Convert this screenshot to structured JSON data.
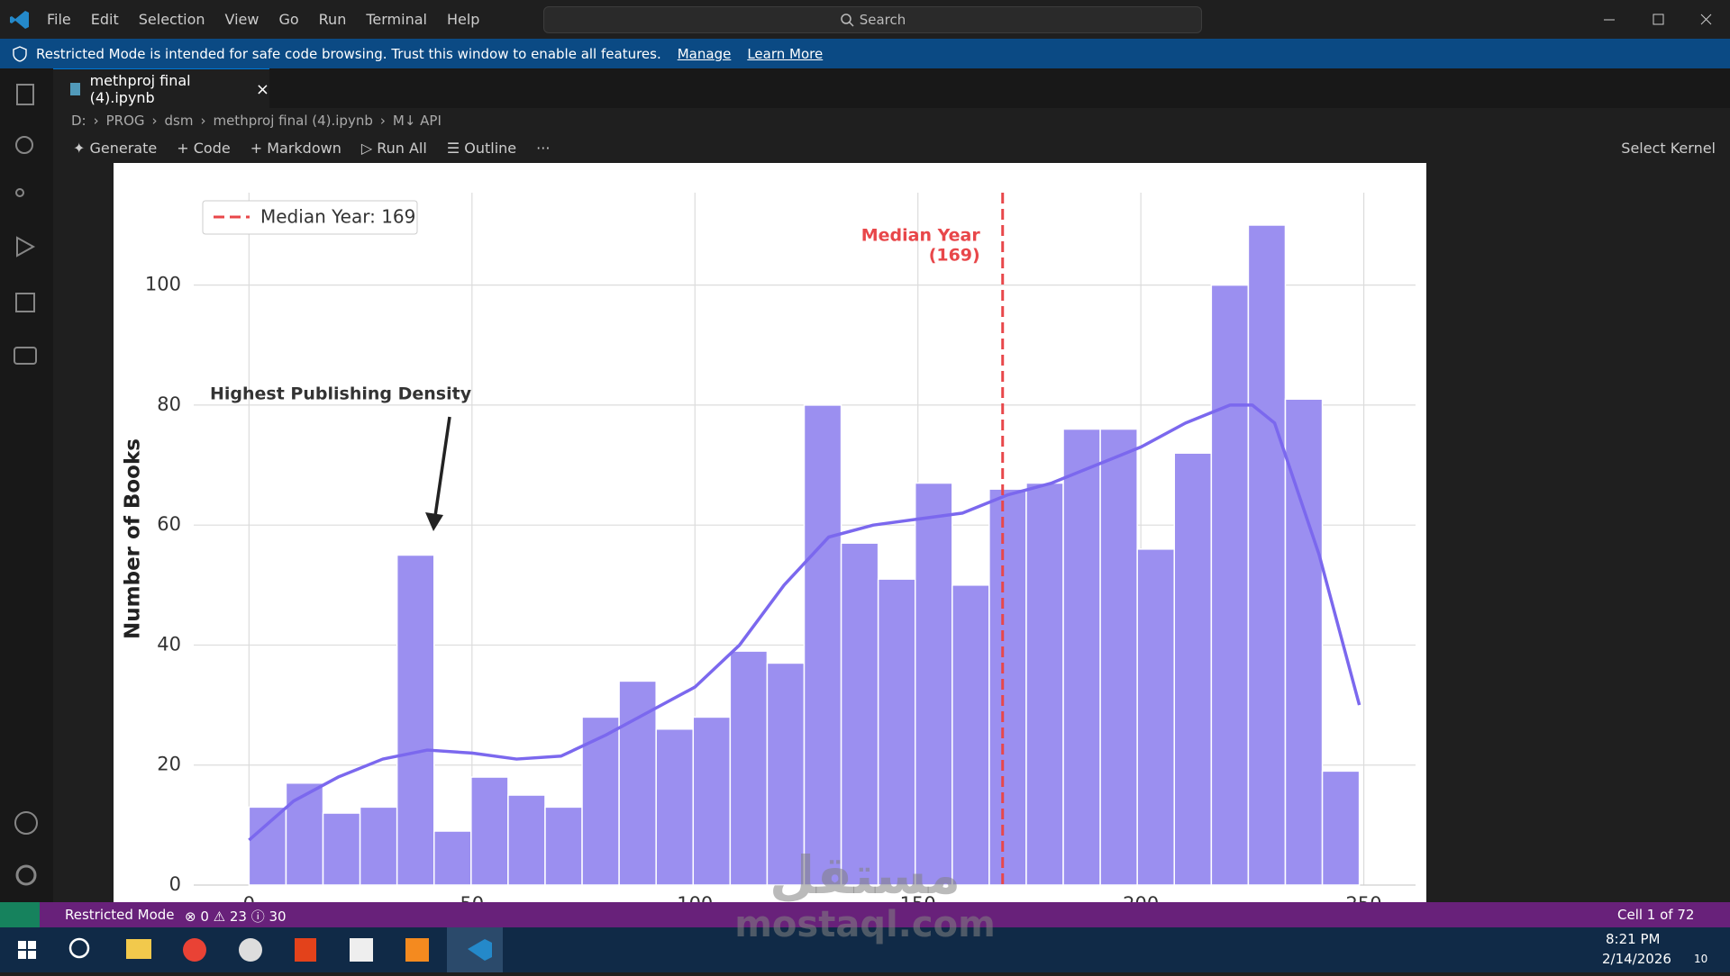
{
  "title_bar": {
    "menu": [
      "File",
      "Edit",
      "Selection",
      "View",
      "Go",
      "Run",
      "Terminal",
      "Help"
    ],
    "search": "Search"
  },
  "banner": {
    "message": "Restricted Mode is intended for safe code browsing. Trust this window to enable all features.",
    "links": [
      "Manage",
      "Learn More"
    ]
  },
  "tab": {
    "label": "methproj final (4).ipynb"
  },
  "breadcrumbs": [
    "D:",
    "PROG",
    "dsm",
    "methproj final (4).ipynb",
    "M↓ API"
  ],
  "toolbar": [
    "Generate",
    "Code",
    "Markdown",
    "Run All",
    "Outline"
  ],
  "kernel": "Select Kernel",
  "chart_data": {
    "type": "histogram",
    "ylabel": "Number of Books",
    "bins": [
      0,
      8.3,
      16.6,
      24.9,
      33.2,
      41.5,
      49.8,
      58.1,
      66.4,
      74.7,
      83,
      91.3,
      99.6,
      107.9,
      116.2,
      124.5,
      132.8,
      141.1,
      149.4,
      157.7,
      166,
      174.3,
      182.6,
      190.9,
      199.2,
      207.5,
      215.8,
      224.1,
      232.4,
      240.7,
      249
    ],
    "values": [
      13,
      17,
      12,
      13,
      55,
      9,
      18,
      15,
      13,
      28,
      34,
      26,
      28,
      39,
      37,
      80,
      57,
      51,
      67,
      50,
      66,
      67,
      76,
      76,
      56,
      72,
      100,
      110,
      81,
      19
    ],
    "color": "#9b8ff0",
    "kde": {
      "color": "#7b68ee",
      "x": [
        0,
        10,
        20,
        30,
        40,
        50,
        60,
        70,
        80,
        90,
        100,
        110,
        120,
        130,
        140,
        150,
        160,
        170,
        180,
        190,
        200,
        210,
        220,
        225,
        230,
        240,
        249
      ],
      "values": [
        7.5,
        14,
        18,
        21,
        22.5,
        22,
        21,
        21.5,
        25,
        29,
        33,
        40,
        50,
        58,
        60,
        61,
        62,
        65,
        67,
        70,
        73,
        77,
        80,
        80,
        77,
        55,
        30
      ]
    },
    "median": {
      "value": 169,
      "color": "#e8474a",
      "legend_label": "Median Year: 169",
      "annotation": [
        "Median Year",
        "(169)"
      ]
    },
    "annotation": "Highest Publishing Density",
    "xlim": [
      -12.4,
      261.6
    ],
    "ylim": [
      0,
      115.4
    ],
    "xticks": [
      0,
      50,
      100,
      150,
      200,
      250
    ],
    "yticks": [
      0,
      20,
      40,
      60,
      80,
      100
    ],
    "grid": true,
    "legend": "upper left"
  },
  "watermark": {
    "arabic": "مستقل",
    "url": "mostaql.com"
  },
  "status_bar": {
    "mode": "Restricted Mode",
    "errors": "0",
    "warnings": "23",
    "info": "30",
    "cell": "Cell 1 of 72"
  },
  "taskbar": {
    "time": "8:21 PM",
    "date": "2/14/2026",
    "notifications": "10"
  }
}
